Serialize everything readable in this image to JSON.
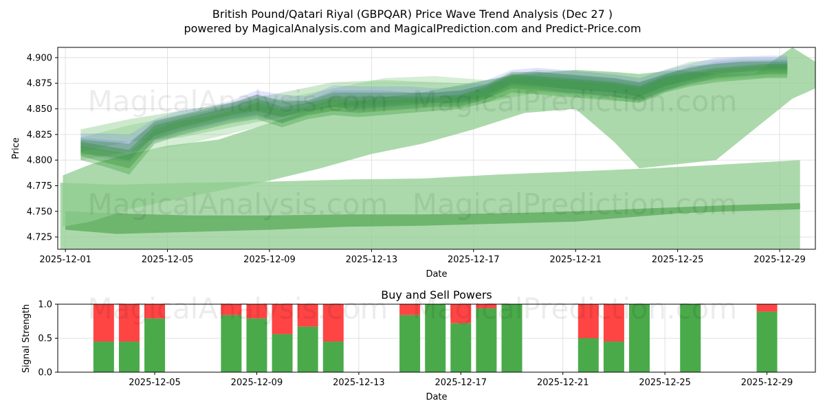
{
  "chart_data": [
    {
      "type": "area",
      "title": "British Pound/Qatari Riyal (GBPQAR) Price Wave Trend Analysis (Dec 27 )",
      "subtitle": "powered by MagicalAnalysis.com and MagicalPrediction.com and Predict-Price.com",
      "xlabel": "Date",
      "ylabel": "Price",
      "ylim": [
        4.713,
        4.91
      ],
      "xlim_days": [
        0.7,
        30.4
      ],
      "x_ticks": [
        {
          "day": 1,
          "label": "2025-12-01"
        },
        {
          "day": 5,
          "label": "2025-12-05"
        },
        {
          "day": 9,
          "label": "2025-12-09"
        },
        {
          "day": 13,
          "label": "2025-12-13"
        },
        {
          "day": 17,
          "label": "2025-12-17"
        },
        {
          "day": 21,
          "label": "2025-12-21"
        },
        {
          "day": 25,
          "label": "2025-12-25"
        },
        {
          "day": 29,
          "label": "2025-12-29"
        }
      ],
      "y_ticks": [
        "4.725",
        "4.750",
        "4.775",
        "4.800",
        "4.825",
        "4.850",
        "4.875",
        "4.900"
      ],
      "grid": true,
      "series": [
        {
          "name": "blue-wave-1",
          "color": "#6666ff",
          "x": [
            1.6,
            2.5,
            3.5,
            4.5,
            5.5,
            6.5,
            7.5,
            8.5,
            9.5,
            10.5,
            11.5,
            12.5,
            13.5,
            14.5,
            15.5,
            16.5,
            17.5,
            18.5,
            19.5,
            20.5,
            21.5,
            22.5,
            23.5,
            24.5,
            25.5,
            26.5,
            27.5,
            28.5,
            29.3
          ],
          "upper": [
            4.826,
            4.826,
            4.825,
            4.84,
            4.848,
            4.852,
            4.858,
            4.868,
            4.864,
            4.862,
            4.873,
            4.872,
            4.872,
            4.872,
            4.87,
            4.872,
            4.878,
            4.888,
            4.89,
            4.888,
            4.886,
            4.884,
            4.88,
            4.888,
            4.894,
            4.9,
            4.901,
            4.902,
            4.902
          ],
          "lower": [
            4.812,
            4.808,
            4.806,
            4.822,
            4.83,
            4.836,
            4.842,
            4.846,
            4.842,
            4.85,
            4.856,
            4.852,
            4.854,
            4.856,
            4.858,
            4.858,
            4.864,
            4.876,
            4.874,
            4.87,
            4.868,
            4.866,
            4.862,
            4.872,
            4.88,
            4.886,
            4.888,
            4.89,
            4.89
          ]
        },
        {
          "name": "blue-wave-2",
          "color": "#6666ff",
          "x": [
            1.6,
            2.5,
            3.5,
            4.5,
            5.5,
            6.5,
            7.5,
            8.5,
            9.5,
            10.5,
            11.5,
            12.5,
            13.5,
            14.5,
            15.5,
            16.5,
            17.5,
            18.5,
            19.5,
            20.5,
            21.5,
            22.5,
            23.5,
            24.5,
            25.5,
            26.5,
            27.5,
            28.5,
            29.3
          ],
          "upper": [
            4.822,
            4.82,
            4.818,
            4.836,
            4.842,
            4.848,
            4.854,
            4.864,
            4.856,
            4.858,
            4.868,
            4.868,
            4.868,
            4.866,
            4.866,
            4.868,
            4.874,
            4.884,
            4.886,
            4.884,
            4.882,
            4.88,
            4.876,
            4.884,
            4.89,
            4.896,
            4.898,
            4.898,
            4.898
          ],
          "lower": [
            4.808,
            4.802,
            4.798,
            4.818,
            4.826,
            4.832,
            4.838,
            4.842,
            4.836,
            4.846,
            4.852,
            4.848,
            4.85,
            4.852,
            4.854,
            4.854,
            4.86,
            4.872,
            4.87,
            4.866,
            4.864,
            4.862,
            4.858,
            4.868,
            4.876,
            4.882,
            4.884,
            4.886,
            4.886
          ]
        },
        {
          "name": "green-wave-1",
          "color": "#2e8b2e",
          "x": [
            1.6,
            2.5,
            3.5,
            4.5,
            5.5,
            6.5,
            7.5,
            8.5,
            9.5,
            10.5,
            11.5,
            12.5,
            13.5,
            14.5,
            15.5,
            16.5,
            17.5,
            18.5,
            19.5,
            20.5,
            21.5,
            22.5,
            23.5,
            24.5,
            25.5,
            26.5,
            27.5,
            28.5,
            29.3
          ],
          "upper": [
            4.82,
            4.818,
            4.816,
            4.838,
            4.844,
            4.85,
            4.856,
            4.864,
            4.858,
            4.858,
            4.866,
            4.866,
            4.866,
            4.866,
            4.866,
            4.868,
            4.874,
            4.886,
            4.886,
            4.884,
            4.882,
            4.88,
            4.876,
            4.884,
            4.89,
            4.894,
            4.896,
            4.896,
            4.896
          ],
          "lower": [
            4.806,
            4.804,
            4.8,
            4.824,
            4.832,
            4.838,
            4.844,
            4.848,
            4.842,
            4.848,
            4.852,
            4.85,
            4.852,
            4.854,
            4.856,
            4.856,
            4.862,
            4.874,
            4.872,
            4.87,
            4.868,
            4.866,
            4.862,
            4.872,
            4.878,
            4.884,
            4.886,
            4.888,
            4.888
          ]
        },
        {
          "name": "green-wave-2",
          "color": "#2e8b2e",
          "x": [
            1.6,
            2.5,
            3.5,
            4.5,
            5.5,
            6.5,
            7.5,
            8.5,
            9.5,
            10.5,
            11.5,
            12.5,
            13.5,
            14.5,
            15.5,
            16.5,
            17.5,
            18.5,
            19.5,
            20.5,
            21.5,
            22.5,
            23.5,
            24.5,
            25.5,
            26.5,
            27.5,
            28.5,
            29.3
          ],
          "upper": [
            4.818,
            4.814,
            4.81,
            4.834,
            4.84,
            4.846,
            4.852,
            4.86,
            4.852,
            4.856,
            4.862,
            4.862,
            4.862,
            4.862,
            4.862,
            4.864,
            4.872,
            4.884,
            4.882,
            4.88,
            4.878,
            4.876,
            4.872,
            4.882,
            4.886,
            4.89,
            4.892,
            4.894,
            4.894
          ],
          "lower": [
            4.804,
            4.798,
            4.792,
            4.82,
            4.828,
            4.834,
            4.84,
            4.844,
            4.836,
            4.844,
            4.848,
            4.846,
            4.848,
            4.85,
            4.852,
            4.852,
            4.86,
            4.87,
            4.868,
            4.866,
            4.864,
            4.862,
            4.858,
            4.868,
            4.874,
            4.88,
            4.882,
            4.884,
            4.884
          ]
        },
        {
          "name": "green-wave-3",
          "color": "#3a9a3a",
          "x": [
            1.6,
            2.5,
            3.5,
            4.5,
            5.5,
            6.5,
            7.5,
            8.5,
            9.5,
            10.5,
            11.5,
            12.5,
            13.5,
            14.5,
            15.5,
            16.5,
            17.5,
            18.5,
            19.5,
            20.5,
            21.5,
            22.5,
            23.5,
            24.5,
            25.5,
            26.5,
            27.5,
            28.5,
            29.3
          ],
          "upper": [
            4.814,
            4.81,
            4.806,
            4.83,
            4.838,
            4.842,
            4.848,
            4.856,
            4.848,
            4.852,
            4.86,
            4.858,
            4.858,
            4.86,
            4.86,
            4.862,
            4.87,
            4.882,
            4.88,
            4.878,
            4.876,
            4.874,
            4.87,
            4.88,
            4.884,
            4.888,
            4.89,
            4.892,
            4.892
          ],
          "lower": [
            4.8,
            4.794,
            4.786,
            4.816,
            4.824,
            4.83,
            4.836,
            4.84,
            4.832,
            4.84,
            4.844,
            4.842,
            4.844,
            4.846,
            4.848,
            4.85,
            4.856,
            4.866,
            4.864,
            4.862,
            4.86,
            4.858,
            4.856,
            4.866,
            4.872,
            4.876,
            4.878,
            4.88,
            4.88
          ]
        },
        {
          "name": "light-green-band-1",
          "color": "#6fbf6f",
          "x": [
            1.6,
            3.5,
            5.5,
            7.5,
            9.5,
            11.5,
            13.5,
            15.5,
            17.5,
            19.5,
            21.5,
            23.5,
            25.5,
            27.5,
            29.3
          ],
          "upper": [
            4.83,
            4.84,
            4.848,
            4.856,
            4.866,
            4.876,
            4.878,
            4.876,
            4.874,
            4.884,
            4.88,
            4.874,
            4.892,
            4.896,
            4.898
          ],
          "lower": [
            4.808,
            4.818,
            4.822,
            4.832,
            4.842,
            4.852,
            4.856,
            4.856,
            4.856,
            4.866,
            4.862,
            4.856,
            4.876,
            4.88,
            4.882
          ]
        },
        {
          "name": "light-green-band-2",
          "color": "#8acb8a",
          "x": [
            1.6,
            3.5,
            5.5,
            7.5,
            9.5,
            11.5,
            13.5,
            15.5,
            17.5,
            19.5,
            21.5,
            23.5,
            25.5,
            27.5,
            29.3
          ],
          "upper": [
            4.822,
            4.834,
            4.844,
            4.852,
            4.86,
            4.87,
            4.88,
            4.882,
            4.878,
            4.888,
            4.886,
            4.88,
            4.896,
            4.9,
            4.9
          ],
          "lower": [
            4.8,
            4.808,
            4.814,
            4.826,
            4.838,
            4.848,
            4.86,
            4.862,
            4.856,
            4.87,
            4.866,
            4.86,
            4.878,
            4.882,
            4.884
          ]
        },
        {
          "name": "large-light-band",
          "color": "#8fcc8f",
          "x": [
            0.9,
            2.0,
            3.5,
            5.0,
            7.0,
            9.0,
            11.0,
            13.0,
            15.0,
            17.0,
            19.0,
            21.0,
            22.5,
            23.5,
            25.0,
            26.5,
            28.0,
            29.5,
            30.4
          ],
          "upper": [
            4.785,
            4.796,
            4.806,
            4.814,
            4.82,
            4.836,
            4.852,
            4.86,
            4.866,
            4.876,
            4.884,
            4.888,
            4.886,
            4.884,
            4.888,
            4.884,
            4.884,
            4.91,
            4.896
          ],
          "lower": [
            4.735,
            4.74,
            4.752,
            4.76,
            4.77,
            4.78,
            4.792,
            4.806,
            4.816,
            4.83,
            4.846,
            4.85,
            4.818,
            4.792,
            4.796,
            4.8,
            4.83,
            4.86,
            4.87
          ]
        },
        {
          "name": "bottom-band-1",
          "color": "#8fcc8f",
          "x": [
            0.8,
            3.0,
            6.0,
            9.0,
            12.0,
            15.0,
            18.0,
            21.0,
            24.0,
            27.0,
            29.8
          ],
          "upper": [
            4.778,
            4.776,
            4.778,
            4.779,
            4.781,
            4.782,
            4.786,
            4.789,
            4.792,
            4.796,
            4.8
          ],
          "lower": [
            4.713,
            4.713,
            4.713,
            4.713,
            4.713,
            4.713,
            4.713,
            4.713,
            4.713,
            4.713,
            4.713
          ]
        },
        {
          "name": "bottom-band-2",
          "color": "#5aa85a",
          "x": [
            1.0,
            3.0,
            6.0,
            9.0,
            12.0,
            15.0,
            18.0,
            21.0,
            23.0,
            25.0,
            27.0,
            29.8
          ],
          "upper": [
            4.75,
            4.748,
            4.746,
            4.746,
            4.747,
            4.747,
            4.748,
            4.75,
            4.752,
            4.754,
            4.756,
            4.758
          ],
          "lower": [
            4.732,
            4.728,
            4.73,
            4.732,
            4.735,
            4.736,
            4.738,
            4.74,
            4.744,
            4.748,
            4.75,
            4.752
          ]
        }
      ]
    },
    {
      "type": "bar",
      "title": "Buy and Sell Powers",
      "xlabel": "Date",
      "ylabel": "Signal Strength",
      "ylim": [
        0,
        1.0
      ],
      "y_ticks": [
        "0.0",
        "0.5",
        "1.0"
      ],
      "x_ticks": [
        {
          "day": 5,
          "label": "2025-12-05"
        },
        {
          "day": 9,
          "label": "2025-12-09"
        },
        {
          "day": 13,
          "label": "2025-12-13"
        },
        {
          "day": 17,
          "label": "2025-12-17"
        },
        {
          "day": 21,
          "label": "2025-12-21"
        },
        {
          "day": 25,
          "label": "2025-12-25"
        },
        {
          "day": 29,
          "label": "2025-12-29"
        }
      ],
      "buy_color": "#4aaa4a",
      "sell_color": "#ff4444",
      "bars": [
        {
          "day": 3,
          "buy": 0.45
        },
        {
          "day": 4,
          "buy": 0.45
        },
        {
          "day": 5,
          "buy": 0.79
        },
        {
          "day": 8,
          "buy": 0.84
        },
        {
          "day": 9,
          "buy": 0.79
        },
        {
          "day": 10,
          "buy": 0.56
        },
        {
          "day": 11,
          "buy": 0.67
        },
        {
          "day": 12,
          "buy": 0.45
        },
        {
          "day": 15,
          "buy": 0.84
        },
        {
          "day": 16,
          "buy": 1.0
        },
        {
          "day": 17,
          "buy": 0.72
        },
        {
          "day": 18,
          "buy": 0.94
        },
        {
          "day": 19,
          "buy": 1.0
        },
        {
          "day": 22,
          "buy": 0.5
        },
        {
          "day": 23,
          "buy": 0.45
        },
        {
          "day": 24,
          "buy": 1.0
        },
        {
          "day": 26,
          "buy": 1.0
        },
        {
          "day": 29,
          "buy": 0.89
        }
      ]
    }
  ],
  "watermarks": [
    "MagicalAnalysis.com",
    "MagicalPrediction.com"
  ]
}
